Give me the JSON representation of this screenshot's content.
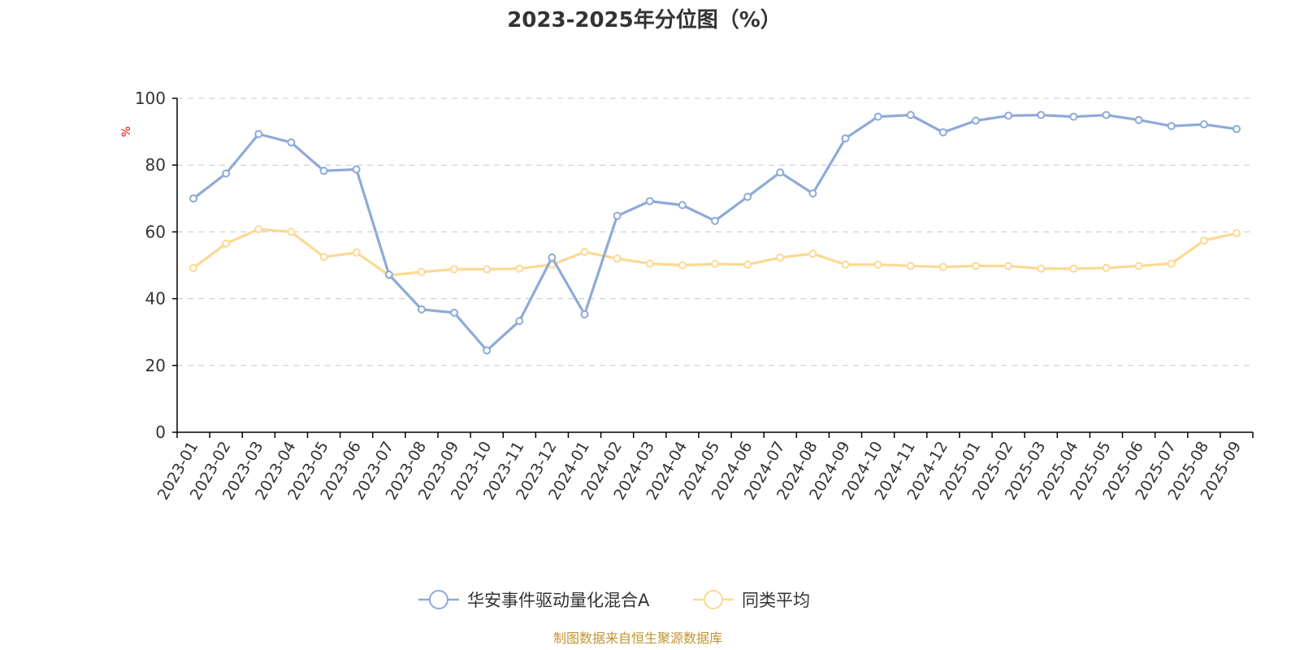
{
  "chart_data": {
    "type": "line",
    "title": "2023-2025年分位图（%）",
    "ylabel": "%",
    "xlabel": "",
    "ylim": [
      0,
      100
    ],
    "yticks": [
      0,
      20,
      40,
      60,
      80,
      100
    ],
    "grid": true,
    "legend_position": "bottom-center",
    "categories": [
      "2023-01",
      "2023-02",
      "2023-03",
      "2023-04",
      "2023-05",
      "2023-06",
      "2023-07",
      "2023-08",
      "2023-09",
      "2023-10",
      "2023-11",
      "2023-12",
      "2024-01",
      "2024-02",
      "2024-03",
      "2024-04",
      "2024-05",
      "2024-06",
      "2024-07",
      "2024-08",
      "2024-09",
      "2024-10",
      "2024-11",
      "2024-12",
      "2025-01",
      "2025-02",
      "2025-03",
      "2025-04",
      "2025-05",
      "2025-06",
      "2025-07",
      "2025-08",
      "2025-09"
    ],
    "series": [
      {
        "name": "华安事件驱动量化混合A",
        "color": "#8eaad8",
        "values": [
          70,
          77.5,
          89.3,
          86.8,
          78.3,
          78.7,
          47.2,
          36.8,
          35.8,
          24.5,
          33.3,
          52.3,
          35.3,
          64.8,
          69.2,
          68,
          63.3,
          70.5,
          77.8,
          71.5,
          88,
          94.5,
          95,
          89.8,
          93.3,
          94.8,
          95,
          94.5,
          95,
          93.5,
          91.7,
          92.2,
          90.8
        ]
      },
      {
        "name": "同类平均",
        "color": "#fcd992",
        "values": [
          49.2,
          56.5,
          60.8,
          60,
          52.5,
          53.8,
          47,
          48,
          48.8,
          48.8,
          49,
          50.2,
          54,
          52,
          50.5,
          50,
          50.4,
          50.2,
          52.3,
          53.5,
          50.2,
          50.2,
          49.8,
          49.5,
          49.8,
          49.8,
          49,
          49,
          49.2,
          49.8,
          50.5,
          57.4,
          59.6
        ]
      }
    ]
  },
  "source_note": "制图数据来自恒生聚源数据库"
}
